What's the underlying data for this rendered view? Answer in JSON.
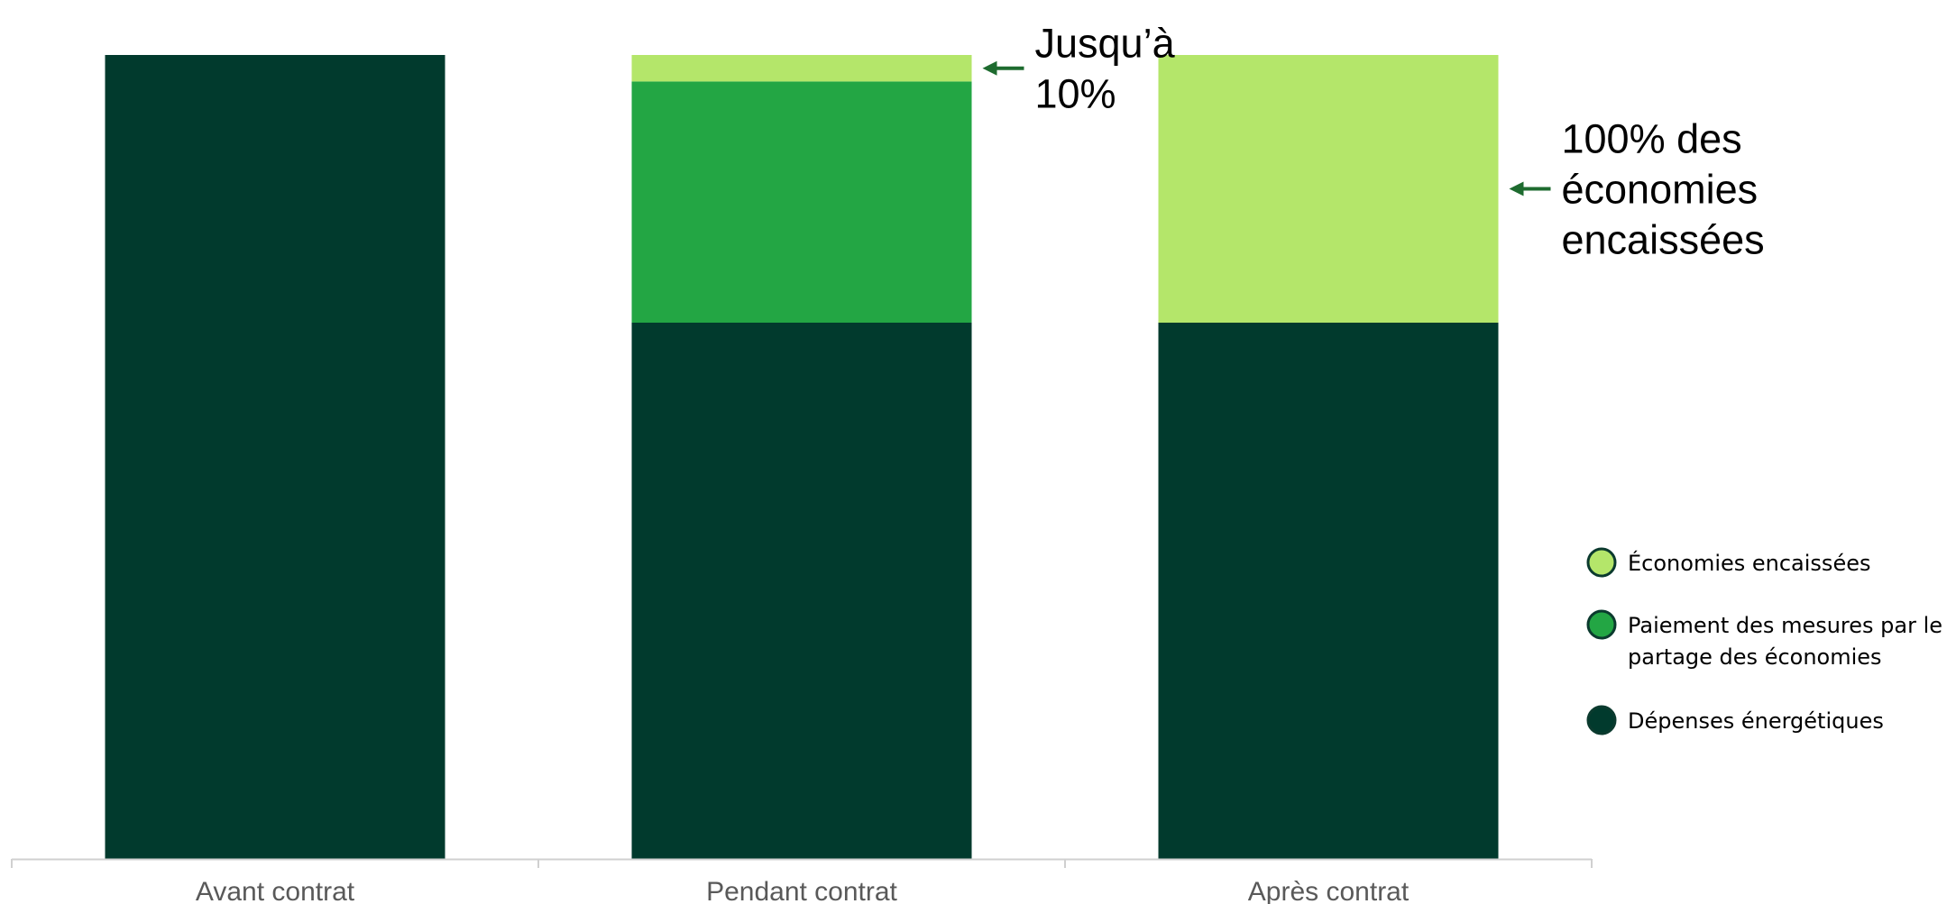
{
  "chart_data": {
    "type": "bar",
    "stacked": true,
    "title": "",
    "xlabel": "",
    "ylabel": "",
    "ylim": [
      0,
      100
    ],
    "grid": false,
    "categories": [
      "Avant contrat",
      "Pendant contrat",
      "Après contrat"
    ],
    "series": [
      {
        "name": "Dépenses énergétiques",
        "color": "#013A2D",
        "values": [
          100,
          66.7,
          66.7
        ]
      },
      {
        "name": "Paiement des mesures par le partage des économies",
        "color": "#23A644",
        "values": [
          0,
          30,
          0
        ]
      },
      {
        "name": "Économies encaissées",
        "color": "#B4E66A",
        "values": [
          0,
          3.3,
          33.3
        ]
      }
    ],
    "legend": {
      "placement": "right",
      "order": [
        2,
        1,
        0
      ],
      "lines": [
        [
          "Économies encaissées"
        ],
        [
          "Paiement des mesures par le",
          "partage des économies"
        ],
        [
          "Dépenses énergétiques"
        ]
      ]
    },
    "annotations": [
      {
        "category": "Pendant contrat",
        "series": "Économies encaissées",
        "lines": [
          "Jusqu’à",
          "10%"
        ],
        "arrow_color": "#1E6B2F"
      },
      {
        "category": "Après contrat",
        "series": "Économies encaissées",
        "lines": [
          "100% des",
          "économies",
          "encaissées"
        ],
        "arrow_color": "#1E6B2F"
      }
    ]
  }
}
